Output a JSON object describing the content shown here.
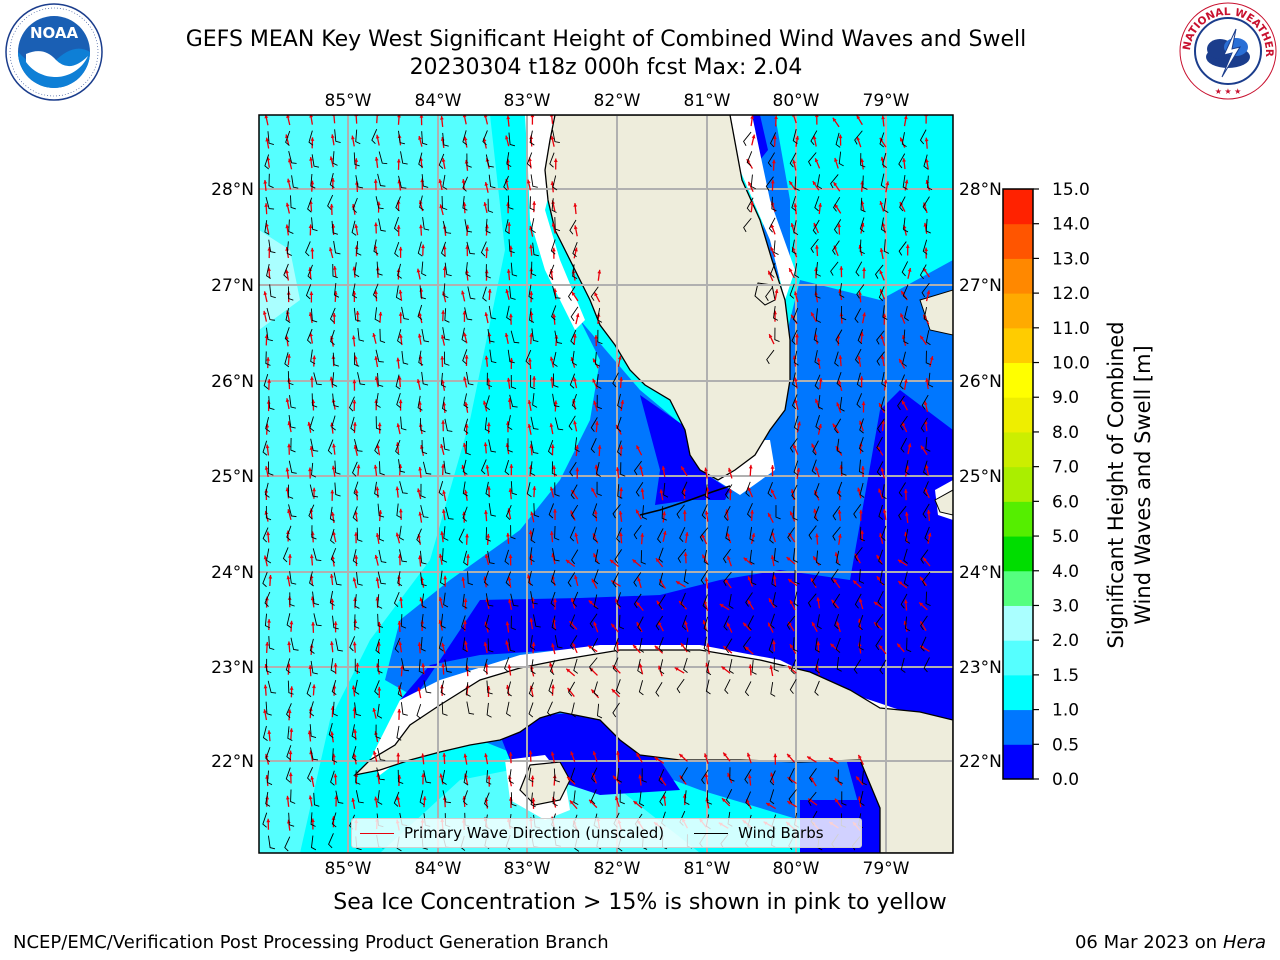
{
  "header": {
    "title_line1": "GEFS MEAN Key West Significant Height of Combined Wind Waves and Swell",
    "title_line2": "20230304 t18z 000h fcst   Max: 2.04"
  },
  "logos": {
    "left": {
      "label": "NOAA",
      "ring_text": "NATIONAL OCEANIC AND ATMOSPHERIC ADMINISTRATION · U.S. DEPARTMENT OF COMMERCE"
    },
    "right": {
      "ring_text": "NATIONAL WEATHER SERVICE"
    }
  },
  "map": {
    "lon_labels": [
      "85°W",
      "84°W",
      "83°W",
      "82°W",
      "81°W",
      "80°W",
      "79°W"
    ],
    "lat_labels": [
      "28°N",
      "27°N",
      "26°N",
      "25°N",
      "24°N",
      "23°N",
      "22°N"
    ],
    "colors": {
      "land": "#eeeddc",
      "grid": "#b0b0b0",
      "arrow": "#e8000b",
      "barb": "#000000"
    }
  },
  "colorbar": {
    "title_line1": "Significant Height of Combined",
    "title_line2": "Wind Waves and Swell [m]",
    "ticks": [
      "15.0",
      "14.0",
      "13.0",
      "12.0",
      "11.0",
      "10.0",
      "9.0",
      "8.0",
      "7.0",
      "6.0",
      "5.0",
      "4.0",
      "3.0",
      "2.0",
      "1.5",
      "1.0",
      "0.5",
      "0.0"
    ],
    "colors": [
      "#0000ff",
      "#0077ff",
      "#00ffff",
      "#55ffff",
      "#aaffff",
      "#55ff7f",
      "#00dd00",
      "#55ee00",
      "#aaee00",
      "#ccee00",
      "#eeee00",
      "#ffff00",
      "#ffcc00",
      "#ffaa00",
      "#ff8800",
      "#ff5500",
      "#ff2200"
    ]
  },
  "legend": {
    "wave_direction": "Primary Wave Direction (unscaled)",
    "wind_barbs": "Wind Barbs"
  },
  "caption": "Sea Ice Concentration > 15% is shown in pink to yellow",
  "footer": {
    "left": "NCEP/EMC/Verification Post Processing Product Generation Branch",
    "date": "06 Mar 2023 on",
    "machine": "Hera"
  }
}
